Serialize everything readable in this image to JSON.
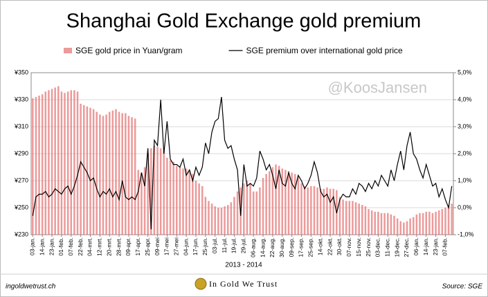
{
  "chart_data": {
    "type": "bar",
    "title": "Shanghai Gold Exchange gold premium",
    "watermark": "@KoosJansen",
    "xlabel": "2013 - 2014",
    "footer_left": "ingoldwetrust.ch",
    "footer_center": "In Gold We Trust",
    "footer_right": "Source: SGE",
    "categories": [
      "03-jan.",
      null,
      null,
      "14-jan.",
      null,
      null,
      "23-jan.",
      null,
      null,
      "01-feb.",
      null,
      null,
      "07-feb.",
      null,
      null,
      "22-feb.",
      null,
      null,
      "04-mrt.",
      null,
      null,
      "12-mrt.",
      null,
      null,
      "20-mrt.",
      null,
      null,
      "28-mrt.",
      null,
      null,
      "09-apr.",
      null,
      null,
      "17-apr.",
      null,
      null,
      "25-apr.",
      null,
      null,
      "09-mei",
      null,
      null,
      "17-mei",
      null,
      null,
      "27-mei",
      null,
      null,
      "04-jun.",
      null,
      null,
      "17-jun.",
      null,
      null,
      "25-jun.",
      null,
      null,
      "03-jul.",
      null,
      null,
      "11-jul.",
      null,
      null,
      "19-jul.",
      null,
      null,
      "29-jul.",
      null,
      null,
      "06-aug.",
      null,
      null,
      "14-aug.",
      null,
      null,
      "22-aug.",
      null,
      null,
      "30-aug.",
      null,
      null,
      "09-sep.",
      null,
      null,
      "17-sep.",
      null,
      null,
      "25-sep.",
      null,
      null,
      "14-okt.",
      null,
      null,
      "22-okt.",
      null,
      null,
      "30-okt.",
      null,
      null,
      "07-nov.",
      null,
      null,
      "15-nov.",
      null,
      null,
      "25-nov.",
      null,
      null,
      "03-dec.",
      null,
      null,
      "11-dec.",
      null,
      null,
      "19-dec.",
      null,
      null,
      "27-dec.",
      null,
      null,
      "06-jan.",
      null,
      null,
      "14-jan.",
      null,
      null,
      "23-jan.",
      null,
      null,
      "07-feb.",
      null,
      null
    ],
    "series": [
      {
        "name": "SGE gold price in Yuan/gram",
        "type": "bar",
        "color": "#e57878",
        "values": [
          331,
          332,
          333,
          334,
          336,
          337,
          338,
          339,
          340,
          336,
          335,
          336,
          337,
          337,
          336,
          327,
          326,
          325,
          324,
          323,
          321,
          319,
          318,
          319,
          321,
          322,
          323,
          321,
          320,
          320,
          318,
          317,
          316,
          278,
          276,
          280,
          290,
          294,
          296,
          295,
          294,
          292,
          287,
          285,
          284,
          281,
          280,
          279,
          279,
          277,
          275,
          270,
          268,
          266,
          258,
          255,
          253,
          251,
          250,
          250,
          251,
          252,
          254,
          258,
          262,
          265,
          268,
          270,
          268,
          262,
          262,
          265,
          272,
          275,
          277,
          280,
          282,
          281,
          279,
          278,
          277,
          276,
          275,
          273,
          268,
          266,
          265,
          266,
          266,
          265,
          264,
          264,
          265,
          264,
          264,
          263,
          258,
          256,
          255,
          255,
          255,
          254,
          253,
          252,
          251,
          249,
          248,
          247,
          247,
          246,
          246,
          246,
          245,
          244,
          242,
          240,
          239,
          240,
          242,
          243,
          245,
          246,
          246,
          247,
          247,
          246,
          247,
          248,
          249,
          250,
          252,
          253
        ]
      },
      {
        "name": "SGE premium over international gold price",
        "type": "line",
        "axis": "y2",
        "color": "#000000",
        "values": [
          -0.3,
          0.4,
          0.5,
          0.5,
          0.6,
          0.4,
          0.5,
          0.7,
          0.6,
          0.5,
          0.7,
          0.8,
          0.5,
          0.8,
          1.2,
          1.7,
          1.5,
          1.3,
          1.0,
          1.1,
          0.7,
          0.4,
          0.6,
          0.5,
          0.7,
          0.4,
          0.6,
          0.3,
          1.0,
          0.4,
          0.3,
          0.4,
          0.3,
          0.6,
          1.3,
          0.8,
          2.2,
          -0.8,
          2.5,
          2.3,
          4.0,
          2.0,
          3.2,
          1.8,
          1.6,
          1.6,
          1.5,
          1.8,
          1.2,
          1.4,
          1.0,
          1.5,
          1.2,
          1.5,
          2.4,
          2.0,
          2.8,
          3.2,
          3.3,
          4.1,
          2.5,
          2.2,
          2.3,
          1.8,
          1.4,
          -0.3,
          1.6,
          0.8,
          0.9,
          0.8,
          1.1,
          2.1,
          1.8,
          1.4,
          1.6,
          1.2,
          0.7,
          1.4,
          0.9,
          0.8,
          1.3,
          0.9,
          0.7,
          1.2,
          1.0,
          0.7,
          0.9,
          1.2,
          1.7,
          1.3,
          0.6,
          0.4,
          0.5,
          0.2,
          0.4,
          -0.2,
          0.3,
          0.5,
          0.4,
          0.4,
          0.7,
          0.5,
          0.9,
          0.8,
          0.6,
          0.9,
          0.7,
          1.0,
          0.8,
          1.2,
          1.0,
          0.8,
          1.4,
          1.0,
          1.6,
          2.1,
          1.4,
          2.3,
          2.8,
          2.0,
          1.8,
          1.4,
          1.1,
          1.6,
          1.2,
          0.8,
          0.9,
          0.4,
          0.7,
          0.3,
          0.0,
          0.8
        ]
      }
    ],
    "ylim": [
      230,
      350
    ],
    "yticks": [
      {
        "value": 230,
        "label": "¥230"
      },
      {
        "value": 250,
        "label": "¥250"
      },
      {
        "value": 270,
        "label": "¥270"
      },
      {
        "value": 290,
        "label": "¥290"
      },
      {
        "value": 310,
        "label": "¥310"
      },
      {
        "value": 330,
        "label": "¥330"
      },
      {
        "value": 350,
        "label": "¥350"
      }
    ],
    "y2lim": [
      -1,
      5
    ],
    "y2ticks": [
      {
        "value": -1,
        "label": "-1,0%"
      },
      {
        "value": 0,
        "label": "0,0%"
      },
      {
        "value": 1,
        "label": "1,0%"
      },
      {
        "value": 2,
        "label": "2,0%"
      },
      {
        "value": 3,
        "label": "3,0%"
      },
      {
        "value": 4,
        "label": "4,0%"
      },
      {
        "value": 5,
        "label": "5,0%"
      }
    ],
    "grid": true
  }
}
